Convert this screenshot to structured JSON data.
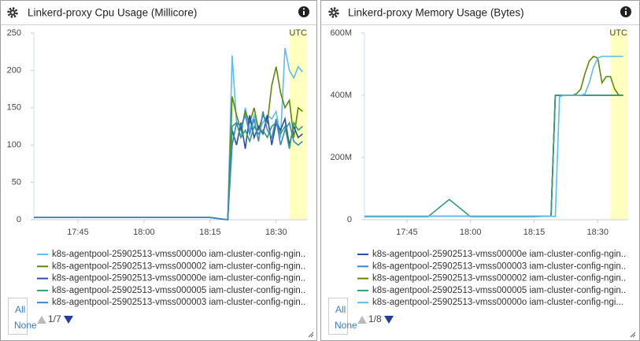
{
  "chart_data": [
    {
      "type": "line",
      "title": "Linkerd-proxy Cpu Usage (Millicore)",
      "timezone": "UTC",
      "x": [
        "17:35",
        "17:40",
        "17:45",
        "17:50",
        "17:55",
        "18:00",
        "18:05",
        "18:10",
        "18:15",
        "18:19",
        "18:20",
        "18:21",
        "18:22",
        "18:23",
        "18:24",
        "18:25",
        "18:26",
        "18:27",
        "18:28",
        "18:29",
        "18:30",
        "18:31",
        "18:32",
        "18:33",
        "18:34",
        "18:35",
        "18:36"
      ],
      "xlim": [
        "17:35",
        "18:37"
      ],
      "xticks": [
        "17:45",
        "18:00",
        "18:15",
        "18:30"
      ],
      "ylim": [
        0,
        250
      ],
      "yticks": [
        0,
        50,
        100,
        150,
        200,
        250
      ],
      "highlight": [
        "18:33",
        "18:37"
      ],
      "series": [
        {
          "name": "k8s-agentpool-25902513-vmss00000o iam-cluster-config-ngin..",
          "color": "#5bbdf0",
          "values": [
            3,
            3,
            3,
            3,
            3,
            3,
            3,
            3,
            3,
            0,
            220,
            130,
            110,
            150,
            120,
            140,
            120,
            130,
            140,
            135,
            145,
            110,
            230,
            200,
            190,
            205,
            198
          ]
        },
        {
          "name": "k8s-agentpool-25902513-vmss000002 iam-cluster-config-ngin..",
          "color": "#5f8a00",
          "values": [
            3,
            3,
            3,
            3,
            3,
            3,
            3,
            3,
            3,
            0,
            165,
            140,
            120,
            145,
            130,
            150,
            120,
            140,
            130,
            180,
            205,
            170,
            150,
            160,
            110,
            150,
            145
          ]
        },
        {
          "name": "k8s-agentpool-25902513-vmss00000e iam-cluster-config-ngin..",
          "color": "#2d4f9e",
          "values": [
            3,
            3,
            3,
            3,
            3,
            3,
            3,
            3,
            3,
            0,
            120,
            100,
            130,
            95,
            140,
            110,
            125,
            115,
            140,
            100,
            130,
            120,
            135,
            100,
            125,
            110,
            115
          ]
        },
        {
          "name": "k8s-agentpool-25902513-vmss000005 iam-cluster-config-ngin..",
          "color": "#2e9e74",
          "values": [
            3,
            3,
            3,
            3,
            3,
            3,
            3,
            3,
            3,
            0,
            125,
            130,
            110,
            120,
            105,
            125,
            115,
            120,
            110,
            125,
            130,
            115,
            125,
            95,
            130,
            120,
            125
          ]
        },
        {
          "name": "k8s-agentpool-25902513-vmss000003 iam-cluster-config-ngin..",
          "color": "#3a86c8",
          "values": [
            3,
            3,
            3,
            3,
            3,
            3,
            3,
            3,
            3,
            0,
            100,
            130,
            125,
            140,
            115,
            135,
            105,
            145,
            120,
            110,
            135,
            100,
            120,
            130,
            105,
            100,
            105
          ]
        }
      ],
      "legend_buttons": [
        "All",
        "None"
      ],
      "pager": "1/7"
    },
    {
      "type": "line",
      "title": "Linkerd-proxy Memory Usage (Bytes)",
      "timezone": "UTC",
      "x": [
        "17:35",
        "17:40",
        "17:45",
        "17:50",
        "17:55",
        "18:00",
        "18:05",
        "18:10",
        "18:15",
        "18:19",
        "18:20",
        "18:21",
        "18:22",
        "18:23",
        "18:24",
        "18:25",
        "18:26",
        "18:27",
        "18:28",
        "18:29",
        "18:30",
        "18:31",
        "18:32",
        "18:33",
        "18:34",
        "18:35",
        "18:36"
      ],
      "xlim": [
        "17:35",
        "18:37"
      ],
      "xticks": [
        "17:45",
        "18:00",
        "18:15",
        "18:30"
      ],
      "ylim": [
        0,
        600000000
      ],
      "yticks": [
        0,
        {
          "value": 200000000,
          "label": "200M"
        },
        {
          "value": 400000000,
          "label": "400M"
        },
        {
          "value": 600000000,
          "label": "600M"
        }
      ],
      "highlight": [
        "18:33",
        "18:37"
      ],
      "series": [
        {
          "name": "k8s-agentpool-25902513-vmss00000e iam-cluster-config-ngin..",
          "color": "#2d4f9e",
          "values": [
            12000000,
            12000000,
            12000000,
            12000000,
            12000000,
            12000000,
            12000000,
            12000000,
            12000000,
            12000000,
            400000000,
            400000000,
            400000000,
            400000000,
            400000000,
            400000000,
            400000000,
            400000000,
            400000000,
            400000000,
            400000000,
            400000000,
            400000000,
            400000000,
            400000000,
            400000000,
            400000000
          ]
        },
        {
          "name": "k8s-agentpool-25902513-vmss000003 iam-cluster-config-ngin..",
          "color": "#3a86c8",
          "values": [
            12000000,
            12000000,
            12000000,
            12000000,
            12000000,
            12000000,
            12000000,
            12000000,
            12000000,
            12000000,
            400000000,
            400000000,
            400000000,
            400000000,
            400000000,
            400000000,
            400000000,
            400000000,
            400000000,
            400000000,
            400000000,
            400000000,
            400000000,
            400000000,
            400000000,
            400000000,
            400000000
          ]
        },
        {
          "name": "k8s-agentpool-25902513-vmss000002 iam-cluster-config-ngin..",
          "color": "#5f8a00",
          "values": [
            12000000,
            12000000,
            12000000,
            12000000,
            12000000,
            12000000,
            12000000,
            12000000,
            12000000,
            12000000,
            400000000,
            400000000,
            400000000,
            400000000,
            400000000,
            405000000,
            420000000,
            470000000,
            510000000,
            525000000,
            520000000,
            440000000,
            460000000,
            460000000,
            420000000,
            400000000,
            400000000
          ]
        },
        {
          "name": "k8s-agentpool-25902513-vmss000005 iam-cluster-config-ngin..",
          "color": "#2e9e74",
          "values": [
            10000000,
            10000000,
            10000000,
            10000000,
            65000000,
            10000000,
            10000000,
            10000000,
            10000000,
            12000000,
            400000000,
            400000000,
            400000000,
            400000000,
            400000000,
            400000000,
            400000000,
            400000000,
            400000000,
            400000000,
            400000000,
            400000000,
            400000000,
            400000000,
            400000000,
            400000000,
            400000000
          ]
        },
        {
          "name": "k8s-agentpool-25902513-vmss00000o iam-cluster-config-ngi...",
          "color": "#5bbdf0",
          "values": [
            12000000,
            12000000,
            12000000,
            12000000,
            12000000,
            12000000,
            12000000,
            12000000,
            12000000,
            12000000,
            10000000,
            395000000,
            400000000,
            400000000,
            400000000,
            400000000,
            400000000,
            405000000,
            440000000,
            490000000,
            520000000,
            525000000,
            525000000,
            525000000,
            525000000,
            525000000,
            525000000
          ]
        }
      ],
      "legend_buttons": [
        "All",
        "None"
      ],
      "pager": "1/8"
    }
  ]
}
